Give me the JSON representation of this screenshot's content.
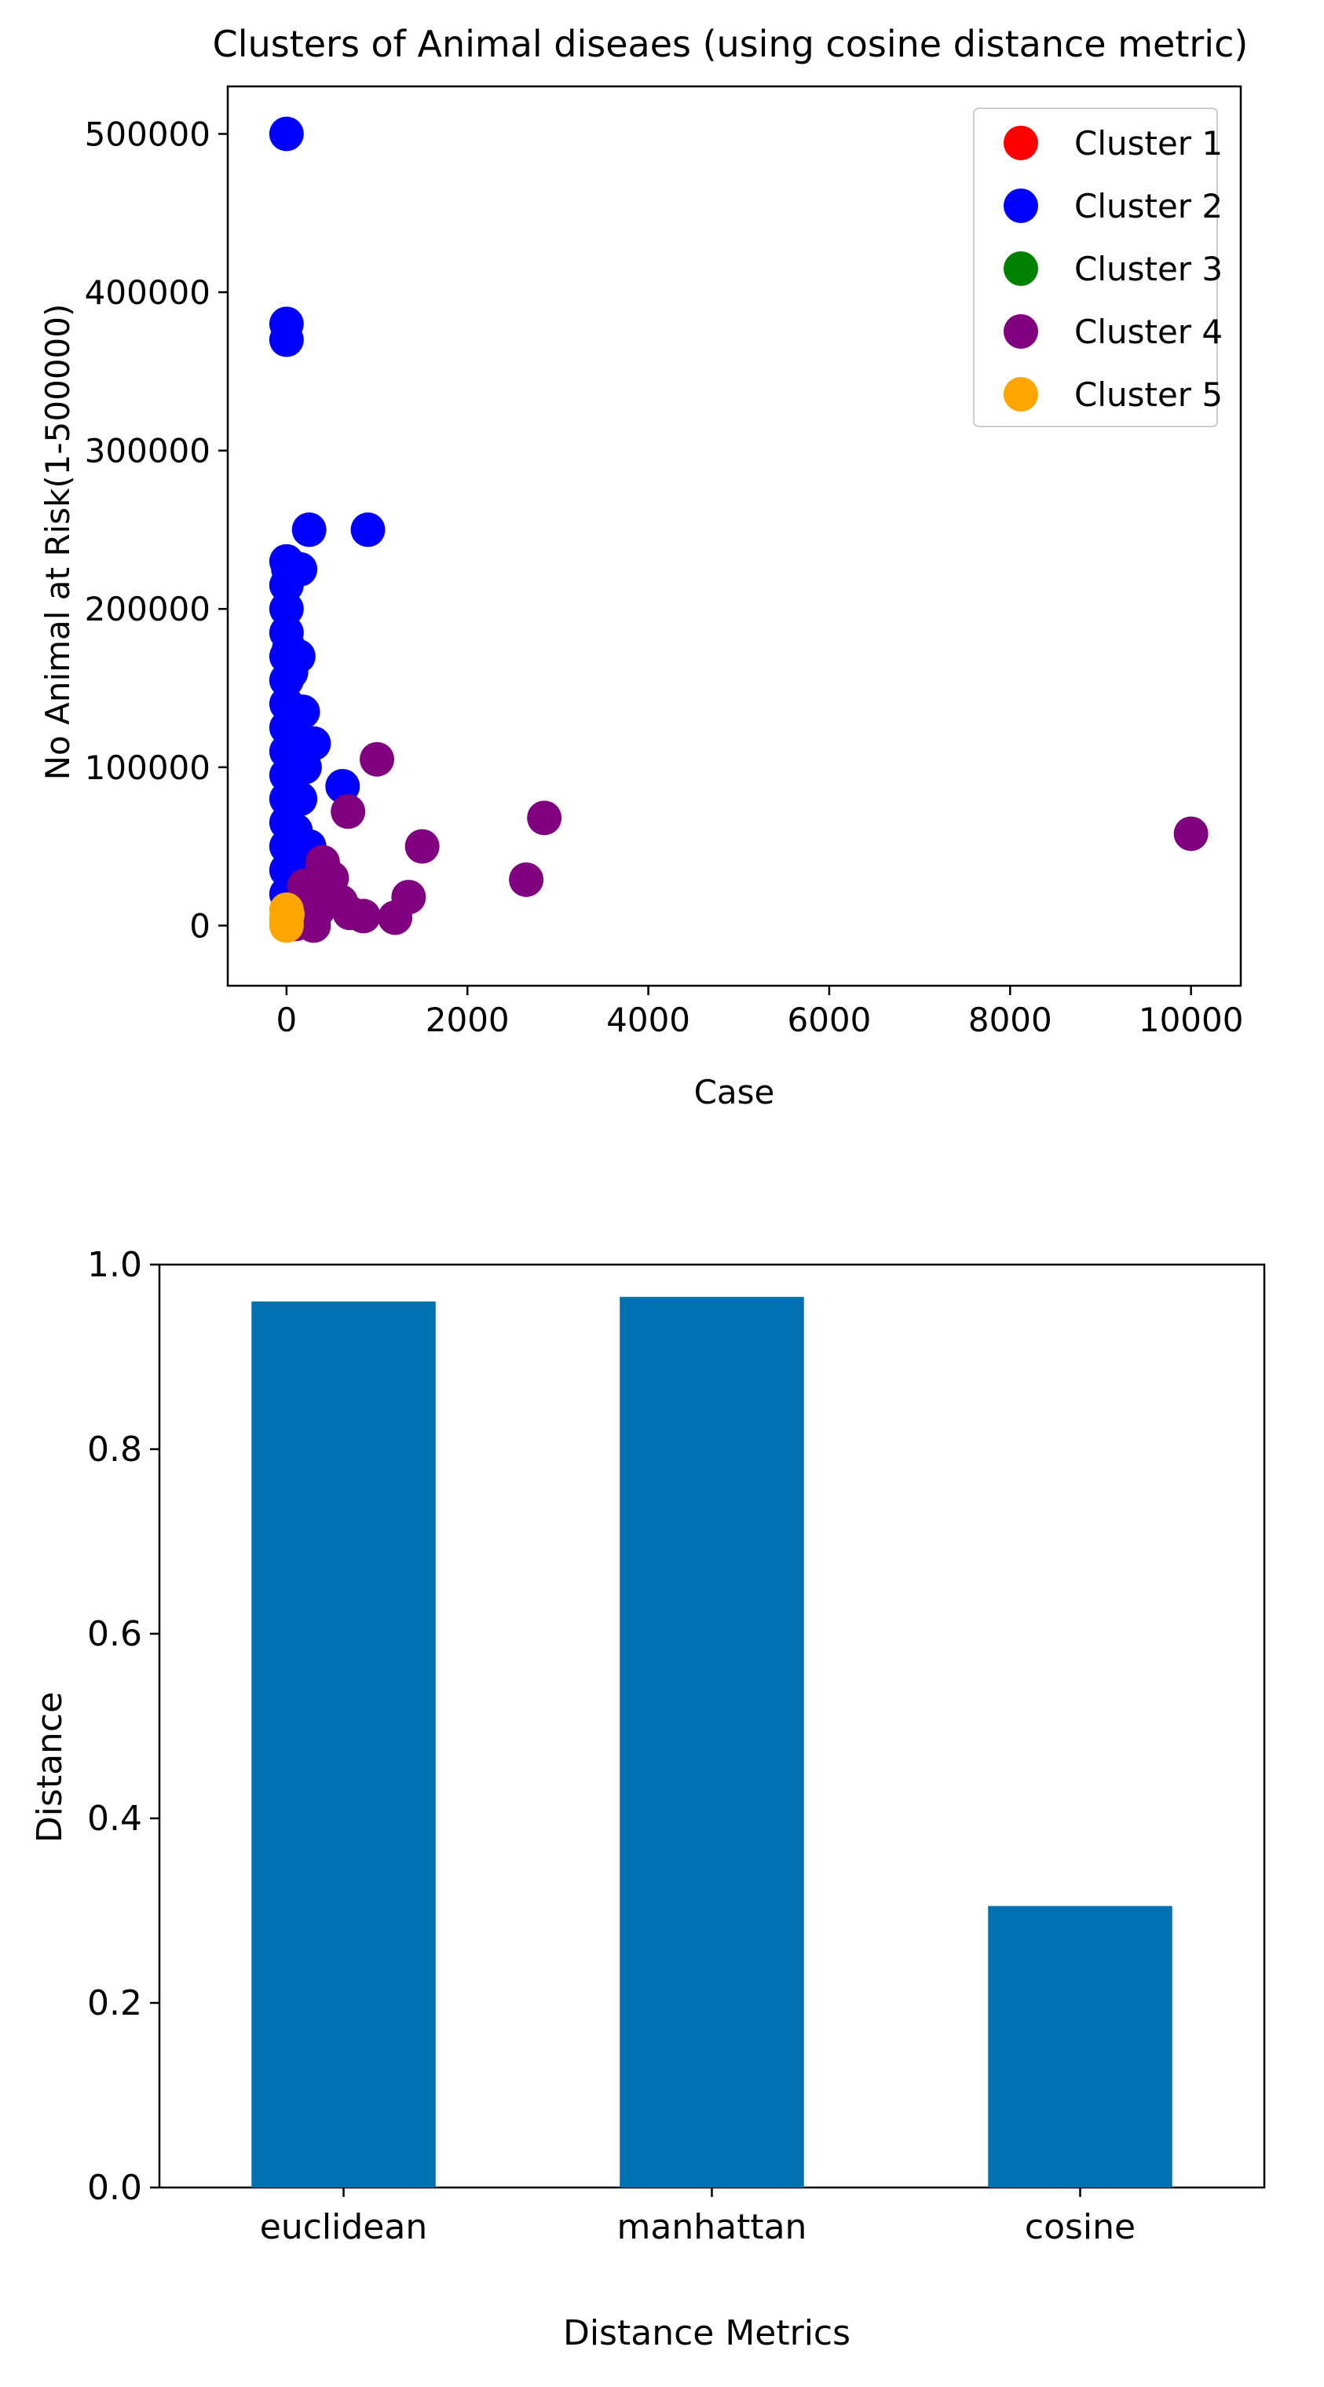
{
  "chart_data": [
    {
      "type": "scatter",
      "title": "Clusters of Animal diseaes (using cosine distance metric)",
      "xlabel": "Case",
      "ylabel": "No Animal at Risk(1-500000)",
      "xlim": [
        -650,
        10550
      ],
      "ylim": [
        -38000,
        530000
      ],
      "xticks": [
        0,
        2000,
        4000,
        6000,
        8000,
        10000
      ],
      "yticks": [
        0,
        100000,
        200000,
        300000,
        400000,
        500000
      ],
      "grid": false,
      "legend_position": "top-right",
      "series": [
        {
          "name": "Cluster 1",
          "color": "#ff0000",
          "points": []
        },
        {
          "name": "Cluster 2",
          "color": "#0000ff",
          "points": [
            [
              0,
              500000
            ],
            [
              0,
              380000
            ],
            [
              0,
              370000
            ],
            [
              0,
              230000
            ],
            [
              0,
              215000
            ],
            [
              0,
              200000
            ],
            [
              0,
              185000
            ],
            [
              0,
              170000
            ],
            [
              0,
              155000
            ],
            [
              0,
              140000
            ],
            [
              0,
              125000
            ],
            [
              0,
              110000
            ],
            [
              0,
              95000
            ],
            [
              0,
              80000
            ],
            [
              0,
              65000
            ],
            [
              0,
              50000
            ],
            [
              0,
              35000
            ],
            [
              0,
              20000
            ],
            [
              20,
              225000
            ],
            [
              30,
              175000
            ],
            [
              50,
              160000
            ],
            [
              60,
              130000
            ],
            [
              80,
              100000
            ],
            [
              100,
              60000
            ],
            [
              150,
              225000
            ],
            [
              130,
              170000
            ],
            [
              180,
              135000
            ],
            [
              200,
              100000
            ],
            [
              150,
              80000
            ],
            [
              250,
              250000
            ],
            [
              900,
              250000
            ],
            [
              300,
              115000
            ],
            [
              250,
              50000
            ],
            [
              620,
              88000
            ],
            [
              350,
              40000
            ]
          ]
        },
        {
          "name": "Cluster 3",
          "color": "#008000",
          "points": []
        },
        {
          "name": "Cluster 4",
          "color": "#800080",
          "points": [
            [
              10000,
              58000
            ],
            [
              2850,
              68000
            ],
            [
              2650,
              29000
            ],
            [
              1500,
              50000
            ],
            [
              1000,
              105000
            ],
            [
              680,
              72000
            ],
            [
              1350,
              18000
            ],
            [
              1200,
              5000
            ],
            [
              850,
              6000
            ],
            [
              600,
              15000
            ],
            [
              400,
              40000
            ],
            [
              500,
              30000
            ],
            [
              350,
              10000
            ],
            [
              250,
              18000
            ],
            [
              300,
              0
            ],
            [
              150,
              5000
            ],
            [
              100,
              1000
            ],
            [
              200,
              25000
            ],
            [
              450,
              20000
            ],
            [
              700,
              8000
            ]
          ]
        },
        {
          "name": "Cluster 5",
          "color": "#ffa500",
          "points": [
            [
              0,
              0
            ],
            [
              0,
              5000
            ],
            [
              0,
              10000
            ],
            [
              0,
              2000
            ],
            [
              10,
              7000
            ]
          ]
        }
      ]
    },
    {
      "type": "bar",
      "title": "",
      "xlabel": "Distance Metrics",
      "ylabel": "Distance",
      "ylim": [
        0,
        1.0
      ],
      "yticks": [
        "0.0",
        "0.2",
        "0.4",
        "0.6",
        "0.8",
        "1.0"
      ],
      "categories": [
        "euclidean",
        "manhattan",
        "cosine"
      ],
      "values": [
        0.96,
        0.965,
        0.305
      ],
      "color": "#0072b2",
      "grid": false
    }
  ]
}
